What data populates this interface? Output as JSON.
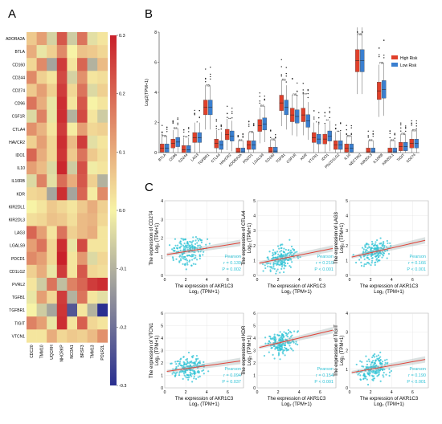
{
  "panels": {
    "a": "A",
    "b": "B",
    "c": "C"
  },
  "chart_data": [
    {
      "type": "heatmap",
      "panel": "A",
      "rows": [
        "ADORA2A",
        "BTLA",
        "CD160",
        "CD244",
        "CD274",
        "CD96",
        "CSF1R",
        "CTLA4",
        "HAVCR2",
        "IDO1",
        "IL10",
        "IL10RB",
        "KDR",
        "KIR2DL1",
        "KIR2DL3",
        "LAG3",
        "LGALS9",
        "PDCD1",
        "CD1LG2",
        "PVRL2",
        "TGFB1",
        "TGFBR1",
        "TIGIT",
        "VTCN1"
      ],
      "columns": [
        "CDC20",
        "TMM10",
        "UQCRH",
        "NHCRKP",
        "NCOA1",
        "BRSF3",
        "TMM13",
        "POLR2L"
      ],
      "values": [
        [
          0.06,
          0.12,
          -0.05,
          0.22,
          -0.06,
          0.18,
          -0.03,
          0.02
        ],
        [
          0.1,
          -0.02,
          0.05,
          0.15,
          0.0,
          0.07,
          0.06,
          0.04
        ],
        [
          0.04,
          0.15,
          -0.12,
          0.26,
          0.02,
          0.2,
          -0.1,
          0.08
        ],
        [
          0.15,
          0.05,
          0.02,
          0.24,
          -0.05,
          0.14,
          0.02,
          0.03
        ],
        [
          0.06,
          0.12,
          0.05,
          0.26,
          0.04,
          0.18,
          -0.04,
          0.05
        ],
        [
          0.18,
          0.1,
          -0.02,
          0.28,
          0.02,
          0.22,
          0.0,
          0.02
        ],
        [
          -0.04,
          0.16,
          -0.02,
          0.28,
          -0.1,
          0.24,
          0.02,
          -0.06
        ],
        [
          0.14,
          0.09,
          0.02,
          0.26,
          0.01,
          0.12,
          0.04,
          0.05
        ],
        [
          0.05,
          0.12,
          0.04,
          0.28,
          0.08,
          0.26,
          -0.03,
          0.02
        ],
        [
          0.2,
          0.1,
          0.04,
          0.27,
          0.06,
          0.18,
          0.06,
          0.03
        ],
        [
          0.12,
          0.08,
          -0.04,
          0.29,
          -0.06,
          0.23,
          -0.01,
          0.02
        ],
        [
          -0.04,
          0.16,
          -0.03,
          0.19,
          0.1,
          0.22,
          0.05,
          -0.1
        ],
        [
          0.04,
          0.05,
          -0.12,
          0.28,
          -0.12,
          0.2,
          0.01,
          0.15
        ],
        [
          0.0,
          0.02,
          0.06,
          0.04,
          0.02,
          0.06,
          0.1,
          0.05
        ],
        [
          0.03,
          0.04,
          0.07,
          0.06,
          0.03,
          0.08,
          0.09,
          0.04
        ],
        [
          0.2,
          0.12,
          0.02,
          0.18,
          0.05,
          0.08,
          0.1,
          0.02
        ],
        [
          0.12,
          0.18,
          0.04,
          0.28,
          -0.02,
          0.24,
          0.02,
          0.02
        ],
        [
          0.15,
          0.12,
          0.04,
          0.3,
          0.02,
          0.13,
          -0.04,
          0.04
        ],
        [
          0.05,
          0.1,
          -0.02,
          0.26,
          0.02,
          0.22,
          0.04,
          0.03
        ],
        [
          0.02,
          -0.06,
          0.18,
          -0.08,
          0.16,
          0.2,
          0.26,
          0.28
        ],
        [
          -0.02,
          0.12,
          0.04,
          0.26,
          -0.1,
          0.18,
          0.02,
          -0.03
        ],
        [
          0.0,
          -0.06,
          -0.12,
          0.27,
          -0.24,
          0.02,
          -0.1,
          -0.3
        ],
        [
          0.16,
          0.12,
          -0.02,
          0.28,
          0.02,
          0.21,
          0.04,
          0.02
        ],
        [
          0.02,
          0.02,
          0.1,
          0.04,
          0.06,
          0.05,
          0.08,
          0.14
        ]
      ],
      "colorbar_ticks": [
        "0.3",
        "0.2",
        "0.1",
        "0.0",
        "-0.1",
        "-0.2",
        "-0.3"
      ],
      "colors": {
        "high": "#c9202a",
        "mid": "#f7f3a6",
        "low": "#2a2f90"
      }
    },
    {
      "type": "box",
      "panel": "B",
      "ylabel": "Log2(TPM+1)",
      "ylim": [
        0,
        8
      ],
      "yticks": [
        "0",
        "2",
        "4",
        "6",
        "8"
      ],
      "legend": [
        "High Risk",
        "Low Risk"
      ],
      "series_colors": [
        "#e0402a",
        "#3a7fd0"
      ],
      "genes": [
        "BTLA",
        "CD96",
        "CD244",
        "LAG3",
        "TGFBR1",
        "CTLA4",
        "HAVCR2",
        "ADORA2A",
        "PDCD1",
        "LGALS9",
        "CD160",
        "TGFB1",
        "CSF1R",
        "KDR",
        "VTCN1",
        "IDO1",
        "PDCD1LG2",
        "IL10",
        "NECTIN2",
        "KIR2DL3",
        "IL10RB",
        "KIR2DL1",
        "TIGIT",
        "CD274"
      ],
      "signif": [
        "ns",
        "ns",
        "**",
        "*",
        "ns",
        "*",
        "**",
        "ns",
        "ns",
        "ns",
        "ns",
        "ns",
        "ns",
        "**",
        "*",
        "**",
        "**",
        "ns",
        "ns",
        "ns",
        "ns",
        "ns",
        "ns",
        "ns"
      ],
      "high_median": [
        0.3,
        0.6,
        0.2,
        1.0,
        3.0,
        0.6,
        1.2,
        0.05,
        0.5,
        1.8,
        0.1,
        3.3,
        2.5,
        2.5,
        1.0,
        0.9,
        0.5,
        0.3,
        6.1,
        0.05,
        4.1,
        0.05,
        0.4,
        0.6
      ],
      "low_median": [
        0.3,
        0.7,
        0.2,
        1.0,
        3.0,
        0.5,
        1.1,
        0.05,
        0.5,
        1.9,
        0.1,
        3.0,
        2.4,
        2.1,
        0.9,
        1.1,
        0.5,
        0.3,
        6.1,
        0.05,
        4.2,
        0.05,
        0.4,
        0.6
      ]
    },
    {
      "type": "scatter",
      "panel": "C",
      "subplots": [
        {
          "ylabel": "The expression of CD274",
          "yunit": "Log₂ (TPM+1)",
          "xlabel": "The expression of AKR1C3",
          "xunit": "Log₂ (TPM+1)",
          "stat": "Pearson",
          "r": "r = 0.139",
          "p": "P = 0.002",
          "yticks": [
            "0",
            "1",
            "2",
            "3",
            "4"
          ],
          "ylim": [
            0,
            4
          ],
          "slope": 0.09,
          "intercept": 1.1
        },
        {
          "ylabel": "The expression of CTLA4",
          "yunit": "Log₂ (TPM+1)",
          "xlabel": "The expression of AKR1C3",
          "xunit": "Log₂ (TPM+1)",
          "stat": "Pearson",
          "r": "r = 0.219",
          "p": "P < 0.001",
          "yticks": [
            "0",
            "1",
            "2",
            "3",
            "4",
            "5"
          ],
          "ylim": [
            0,
            5
          ],
          "slope": 0.14,
          "intercept": 0.8
        },
        {
          "ylabel": "The expression of LAG3",
          "yunit": "Log₂ (TPM+1)",
          "xlabel": "The expression of AKR1C3",
          "xunit": "Log₂ (TPM+1)",
          "stat": "Pearson",
          "r": "r = 0.166",
          "p": "P < 0.001",
          "yticks": [
            "0",
            "1",
            "2",
            "3",
            "4",
            "5"
          ],
          "ylim": [
            0,
            5
          ],
          "slope": 0.16,
          "intercept": 1.2
        },
        {
          "ylabel": "The expression of VTCN1",
          "yunit": "Log₂ (TPM+1)",
          "xlabel": "The expression of AKR1C3",
          "xunit": "Log₂ (TPM+1)",
          "stat": "Pearson",
          "r": "r = 0.094",
          "p": "P = 0.037",
          "yticks": [
            "0",
            "1",
            "2",
            "3",
            "4",
            "5",
            "6"
          ],
          "ylim": [
            0,
            6
          ],
          "slope": 0.12,
          "intercept": 1.3
        },
        {
          "ylabel": "The expression of KDR",
          "yunit": "Log₂ (TPM+1)",
          "xlabel": "The expression of AKR1C3",
          "xunit": "Log₂ (TPM+1)",
          "stat": "Pearson",
          "r": "r = 0.154",
          "p": "P < 0.001",
          "yticks": [
            "0",
            "1",
            "2",
            "3",
            "4",
            "5",
            "6"
          ],
          "ylim": [
            0,
            6
          ],
          "slope": 0.2,
          "intercept": 3.2
        },
        {
          "ylabel": "The expression of TIGIT",
          "yunit": "Log₂ (TPM+1)",
          "xlabel": "The expression of AKR1C3",
          "xunit": "Log₂ (TPM+1)",
          "stat": "Pearson",
          "r": "r = 0.190",
          "p": "P < 0.001",
          "yticks": [
            "0",
            "1",
            "2",
            "3",
            "4"
          ],
          "ylim": [
            0,
            4
          ],
          "slope": 0.1,
          "intercept": 0.8
        }
      ],
      "xticks": [
        "0",
        "2",
        "4",
        "6"
      ],
      "xlim": [
        0,
        7.5
      ],
      "point_color": "#2fc3d6",
      "line_color": "#e0443a"
    }
  ]
}
